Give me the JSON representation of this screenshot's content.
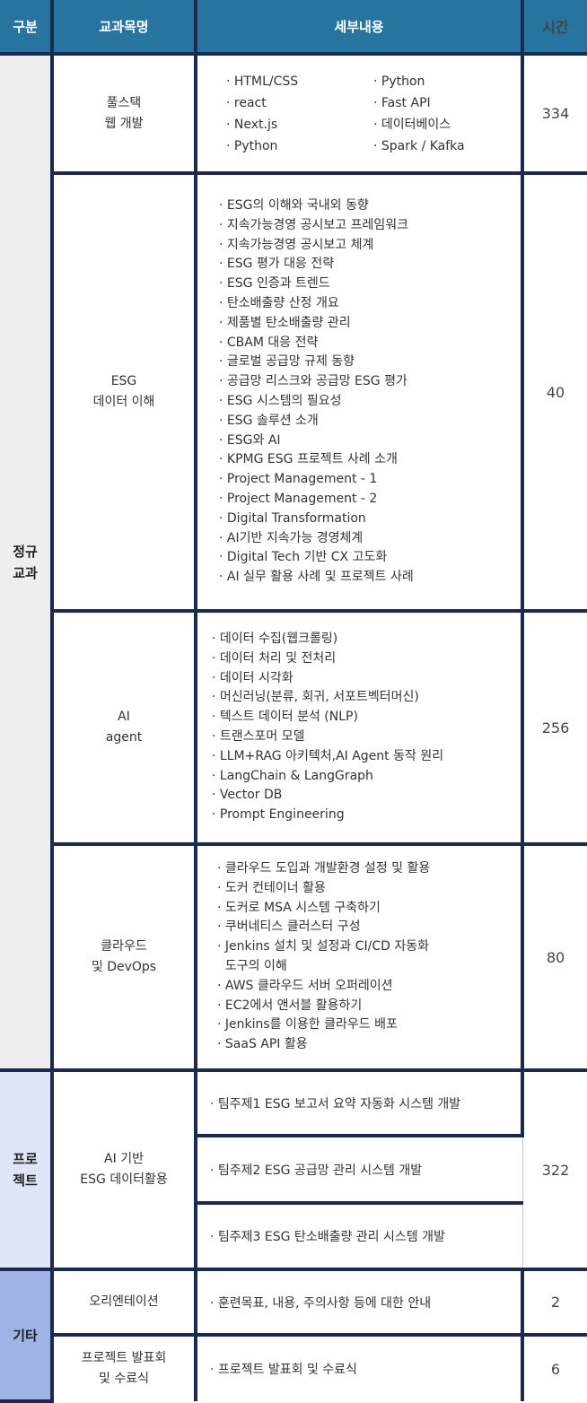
{
  "header": {
    "category": "구분",
    "subject": "교과목명",
    "detail": "세부내용",
    "time": "시간"
  },
  "colors": {
    "header": "#2774a0",
    "border": "#1b2a4e",
    "regular": "#efefef",
    "project": "#dfe6f7",
    "etc": "#9db4e4"
  },
  "regular": {
    "category": "정규\n교과",
    "courses": [
      {
        "subject": "풀스택\n웹 개발",
        "time": "334",
        "col1": [
          "HTML/CSS",
          "react",
          "Next.js",
          "Python"
        ],
        "col2": [
          "Python",
          "Fast API",
          "데이터베이스",
          "Spark / Kafka"
        ]
      },
      {
        "subject": "ESG\n데이터 이해",
        "time": "40",
        "items": [
          "ESG의 이해와 국내외 동향",
          "지속가능경영 공시보고 프레임워크",
          "지속가능경영 공시보고 체계",
          "ESG 평가 대응 전략",
          "ESG 인증과 트렌드",
          "탄소배출량 산정 개요",
          "제품별 탄소배출량 관리",
          "CBAM 대응 전략",
          "글로벌 공급망 규제 동향",
          "공급망 리스크와 공급망 ESG 평가",
          "ESG 시스템의 필요성",
          "ESG 솔루션 소개",
          "ESG와 AI",
          "KPMG ESG 프로젝트 사례 소개",
          "Project Management - 1",
          "Project Management - 2",
          "Digital Transformation",
          "AI기반 지속가능 경영체계",
          "Digital Tech 기반 CX 고도화",
          "AI 실무 활용 사례 및 프로젝트 사례"
        ]
      },
      {
        "subject": "AI\nagent",
        "time": "256",
        "items": [
          "데이터 수집(웹크롤링)",
          "데이터 처리 및 전처리",
          "데이터 시각화",
          "머신러닝(분류, 회귀, 서포트벡터머신)",
          "텍스트 데이터 분석 (NLP)",
          "트랜스포머 모델",
          "LLM+RAG 아키텍처,AI Agent 동작 원리",
          "LangChain & LangGraph",
          "Vector DB",
          "Prompt Engineering"
        ]
      },
      {
        "subject": "클라우드\n및 DevOps",
        "time": "80",
        "items": [
          "클라우드 도입과 개발환경 설정 및 활용",
          "도커 컨테이너 활용",
          "도커로 MSA 시스템 구축하기",
          "쿠버네티스 클러스터 구성",
          "Jenkins 설치 및 설정과 CI/CD 자동화\n  도구의 이해",
          "AWS 클라우드 서버 오퍼레이션",
          "EC2에서 앤서블 활용하기",
          "Jenkins를 이용한 클라우드 배포",
          "SaaS API 활용"
        ]
      }
    ]
  },
  "project": {
    "category": "프로\n젝트",
    "subject": "AI 기반\nESG 데이터활용",
    "time": "322",
    "items": [
      "팀주제1  ESG 보고서 요약 자동화 시스템 개발",
      "팀주제2  ESG 공급망 관리 시스템 개발",
      "팀주제3  ESG 탄소배출량 관리 시스템 개발"
    ]
  },
  "etc": {
    "category": "기타",
    "rows": [
      {
        "subject": "오리엔테이션",
        "detail": "훈련목표, 내용, 주의사항 등에 대한 안내",
        "time": "2"
      },
      {
        "subject": "프로젝트 발표회\n및 수료식",
        "detail": "프로젝트 발표회 및 수료식",
        "time": "6"
      }
    ]
  }
}
